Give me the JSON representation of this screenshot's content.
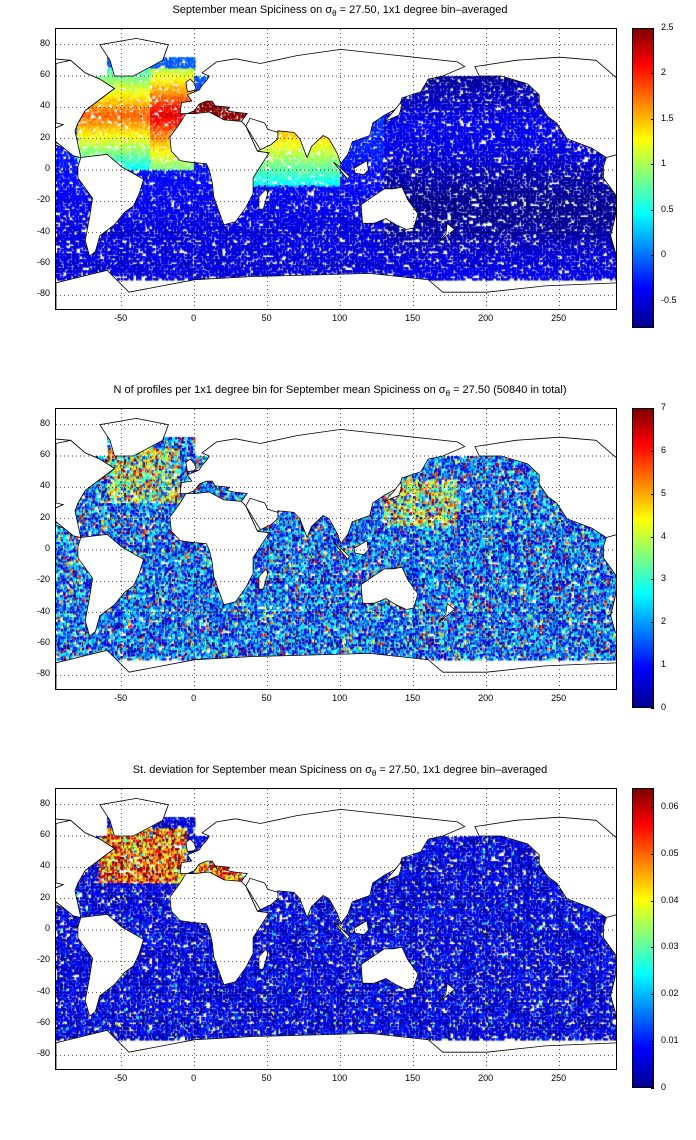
{
  "panels": [
    {
      "title_pre": "September mean Spiciness on σ",
      "title_sub": "θ",
      "title_post": " = 27.50, 1x1 degree bin–averaged",
      "colorbar": {
        "min": -0.8,
        "max": 2.5,
        "ticks": [
          "2.5",
          "2",
          "1.5",
          "1",
          "0.5",
          "0",
          "-0.5"
        ],
        "tick_values": [
          2.5,
          2,
          1.5,
          1,
          0.5,
          0,
          -0.5
        ]
      },
      "field": "spiciness"
    },
    {
      "title_pre": "N of profiles per 1x1 degree bin for September mean Spiciness on σ",
      "title_sub": "θ",
      "title_post": " = 27.50 (50840 in total)",
      "colorbar": {
        "min": 0,
        "max": 7,
        "ticks": [
          "7",
          "6",
          "5",
          "4",
          "3",
          "2",
          "1",
          "0"
        ],
        "tick_values": [
          7,
          6,
          5,
          4,
          3,
          2,
          1,
          0
        ]
      },
      "field": "count"
    },
    {
      "title_pre": "St. deviation for September mean Spiciness on σ",
      "title_sub": "θ",
      "title_post": " = 27.50, 1x1 degree bin–averaged",
      "colorbar": {
        "min": 0,
        "max": 0.064,
        "ticks": [
          "0.06",
          "0.05",
          "0.04",
          "0.03",
          "0.02",
          "0.01",
          "0"
        ],
        "tick_values": [
          0.06,
          0.05,
          0.04,
          0.03,
          0.02,
          0.01,
          0
        ]
      },
      "field": "std"
    }
  ],
  "axes": {
    "xlim": [
      -95,
      290
    ],
    "ylim": [
      -90,
      90
    ],
    "xticks": [
      "-50",
      "0",
      "50",
      "100",
      "150",
      "200",
      "250"
    ],
    "xtick_values": [
      -50,
      0,
      50,
      100,
      150,
      200,
      250
    ],
    "yticks": [
      "80",
      "60",
      "40",
      "20",
      "0",
      "-20",
      "-40",
      "-60",
      "-80"
    ],
    "ytick_values": [
      80,
      60,
      40,
      20,
      0,
      -20,
      -40,
      -60,
      -80
    ],
    "grid": "dotted"
  },
  "colormap": "jet"
}
